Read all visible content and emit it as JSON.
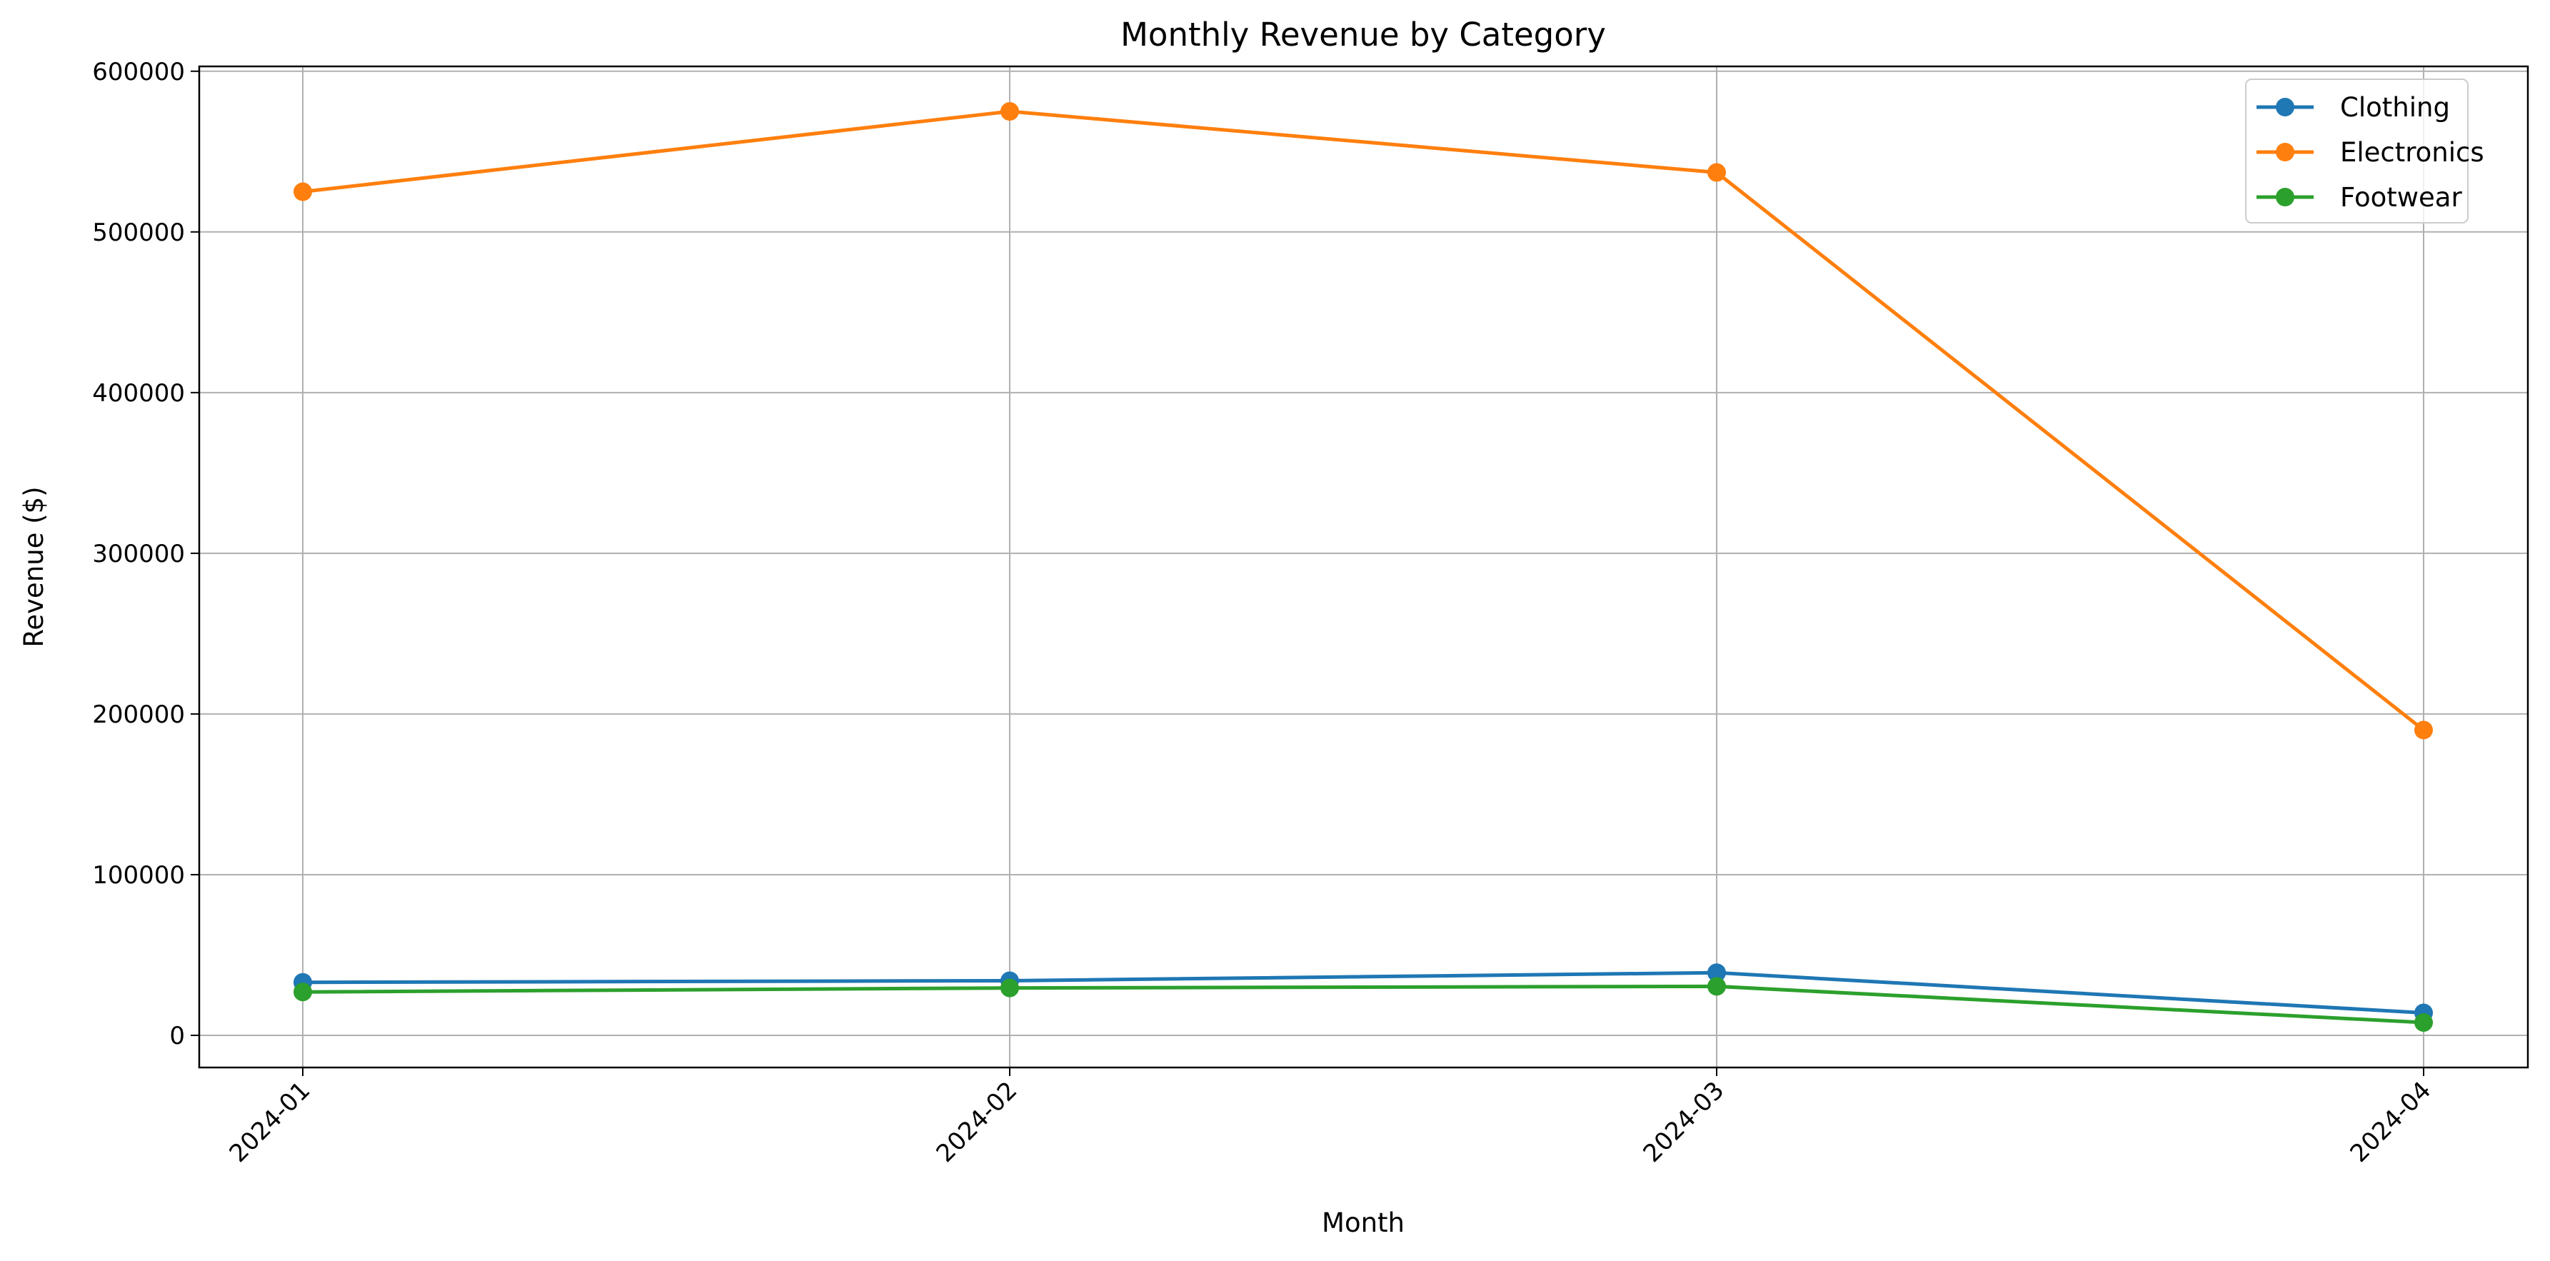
{
  "chart_data": {
    "type": "line",
    "title": "Monthly Revenue by Category",
    "xlabel": "Month",
    "ylabel": "Revenue ($)",
    "categories": [
      "2024-01",
      "2024-02",
      "2024-03",
      "2024-04"
    ],
    "ylim": [
      -20000,
      603000
    ],
    "yticks": [
      0,
      100000,
      200000,
      300000,
      400000,
      500000,
      600000
    ],
    "ytick_labels": [
      "0",
      "100000",
      "200000",
      "300000",
      "400000",
      "500000",
      "600000"
    ],
    "grid": true,
    "legend_position": "top-right",
    "marker": "circle",
    "series": [
      {
        "name": "Clothing",
        "color": "#1f77b4",
        "values": [
          33000,
          34000,
          39000,
          14000
        ]
      },
      {
        "name": "Electronics",
        "color": "#ff7f0e",
        "values": [
          525000,
          575000,
          537000,
          190000
        ]
      },
      {
        "name": "Footwear",
        "color": "#2ca02c",
        "values": [
          27000,
          29500,
          30500,
          8000
        ]
      }
    ]
  }
}
